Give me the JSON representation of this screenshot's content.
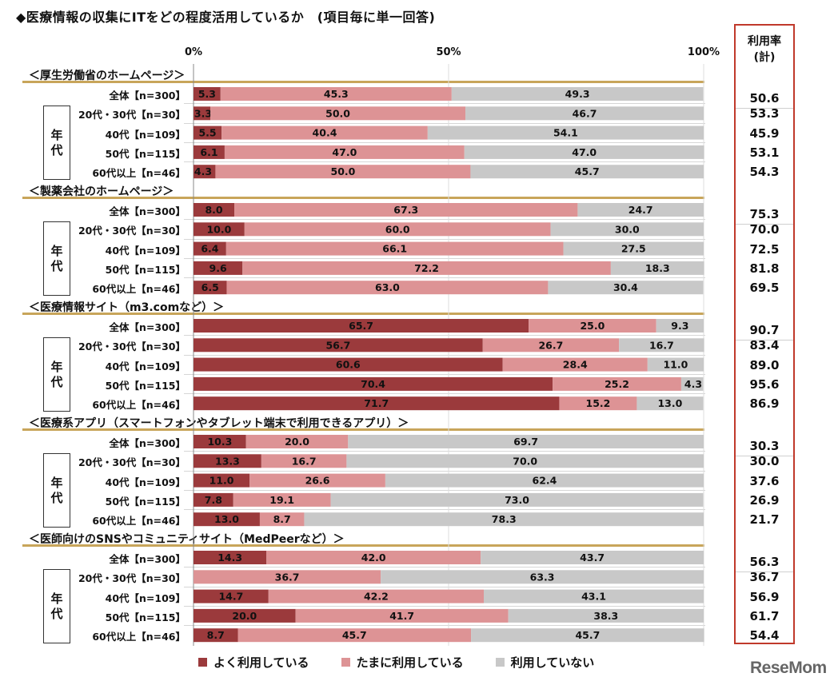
{
  "title": "◆医療情報の収集にITをどの程度活用しているか　(項目毎に単一回答)",
  "rate_header": [
    "利用率",
    "(計)"
  ],
  "age_group_label": [
    "年",
    "代"
  ],
  "watermark": "ReseMom",
  "colors": {
    "often": "#9b3a3c",
    "sometimes": "#dd9395",
    "never": "#c8c8c8",
    "accent": "#c0392b",
    "divider": "#c8a55a"
  },
  "chart_data": {
    "type": "bar",
    "orientation": "horizontal",
    "stacked": true,
    "xlim": [
      0,
      100
    ],
    "xticks": [
      "0%",
      "50%",
      "100%"
    ],
    "legend": {
      "position": "bottom",
      "entries": [
        "よく利用している",
        "たまに利用している",
        "利用していない"
      ]
    },
    "sections": [
      {
        "name": "＜厚生労働省のホームページ＞",
        "rows": [
          {
            "label": "全体【n=300】",
            "values": [
              5.3,
              45.3,
              49.3
            ],
            "rate": "50.6"
          },
          {
            "label": "20代・30代【n=30】",
            "values": [
              3.3,
              50.0,
              46.7
            ],
            "rate": "53.3"
          },
          {
            "label": "40代【n=109】",
            "values": [
              5.5,
              40.4,
              54.1
            ],
            "rate": "45.9"
          },
          {
            "label": "50代【n=115】",
            "values": [
              6.1,
              47.0,
              47.0
            ],
            "rate": "53.1"
          },
          {
            "label": "60代以上【n=46】",
            "values": [
              4.3,
              50.0,
              45.7
            ],
            "rate": "54.3"
          }
        ]
      },
      {
        "name": "＜製薬会社のホームページ＞",
        "rows": [
          {
            "label": "全体【n=300】",
            "values": [
              8.0,
              67.3,
              24.7
            ],
            "rate": "75.3"
          },
          {
            "label": "20代・30代【n=30】",
            "values": [
              10.0,
              60.0,
              30.0
            ],
            "rate": "70.0"
          },
          {
            "label": "40代【n=109】",
            "values": [
              6.4,
              66.1,
              27.5
            ],
            "rate": "72.5"
          },
          {
            "label": "50代【n=115】",
            "values": [
              9.6,
              72.2,
              18.3
            ],
            "rate": "81.8"
          },
          {
            "label": "60代以上【n=46】",
            "values": [
              6.5,
              63.0,
              30.4
            ],
            "rate": "69.5"
          }
        ]
      },
      {
        "name": "＜医療情報サイト（m3.comなど）＞",
        "rows": [
          {
            "label": "全体【n=300】",
            "values": [
              65.7,
              25.0,
              9.3
            ],
            "rate": "90.7"
          },
          {
            "label": "20代・30代【n=30】",
            "values": [
              56.7,
              26.7,
              16.7
            ],
            "rate": "83.4"
          },
          {
            "label": "40代【n=109】",
            "values": [
              60.6,
              28.4,
              11.0
            ],
            "rate": "89.0"
          },
          {
            "label": "50代【n=115】",
            "values": [
              70.4,
              25.2,
              4.3
            ],
            "rate": "95.6"
          },
          {
            "label": "60代以上【n=46】",
            "values": [
              71.7,
              15.2,
              13.0
            ],
            "rate": "86.9"
          }
        ]
      },
      {
        "name": "＜医療系アプリ（スマートフォンやタブレット端末で利用できるアプリ）＞",
        "rows": [
          {
            "label": "全体【n=300】",
            "values": [
              10.3,
              20.0,
              69.7
            ],
            "rate": "30.3"
          },
          {
            "label": "20代・30代【n=30】",
            "values": [
              13.3,
              16.7,
              70.0
            ],
            "rate": "30.0"
          },
          {
            "label": "40代【n=109】",
            "values": [
              11.0,
              26.6,
              62.4
            ],
            "rate": "37.6"
          },
          {
            "label": "50代【n=115】",
            "values": [
              7.8,
              19.1,
              73.0
            ],
            "rate": "26.9"
          },
          {
            "label": "60代以上【n=46】",
            "values": [
              13.0,
              8.7,
              78.3
            ],
            "rate": "21.7"
          }
        ]
      },
      {
        "name": "＜医師向けのSNSやコミュニティサイト（MedPeerなど）＞",
        "rows": [
          {
            "label": "全体【n=300】",
            "values": [
              14.3,
              42.0,
              43.7
            ],
            "rate": "56.3"
          },
          {
            "label": "20代・30代【n=30】",
            "values": [
              0.0,
              36.7,
              63.3
            ],
            "rate": "36.7"
          },
          {
            "label": "40代【n=109】",
            "values": [
              14.7,
              42.2,
              43.1
            ],
            "rate": "56.9"
          },
          {
            "label": "50代【n=115】",
            "values": [
              20.0,
              41.7,
              38.3
            ],
            "rate": "61.7"
          },
          {
            "label": "60代以上【n=46】",
            "values": [
              8.7,
              45.7,
              45.7
            ],
            "rate": "54.4"
          }
        ]
      }
    ]
  }
}
